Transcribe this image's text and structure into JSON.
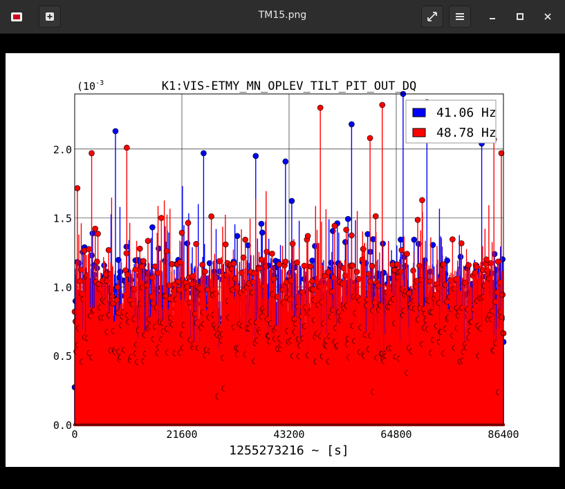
{
  "window": {
    "title": "TM15.png",
    "app_icon": "image-viewer-icon",
    "buttons": {
      "new": "plus-icon",
      "fullscreen": "fullscreen-icon",
      "menu": "hamburger-icon",
      "minimize": "minimize-icon",
      "maximize": "maximize-icon",
      "close": "close-icon"
    }
  },
  "chart_data": {
    "type": "scatter",
    "style": "stem",
    "title": "K1:VIS-ETMY_MN_OPLEV_TILT_PIT_OUT_DQ",
    "xlabel": "1255273216 ~ [s]",
    "ylabel": "",
    "y_scale_label": "(10",
    "y_scale_exponent": "-3",
    "xlim": [
      0,
      86400
    ],
    "ylim": [
      0,
      2.4
    ],
    "x_ticks": [
      0,
      21600,
      43200,
      64800,
      86400
    ],
    "x_tick_labels": [
      "0",
      "21600",
      "43200",
      "64800",
      "86400"
    ],
    "y_ticks": [
      0,
      0.5,
      1.0,
      1.5,
      2.0
    ],
    "y_tick_labels": [
      "0.0",
      "0.5",
      "1.0",
      "1.5",
      "2.0"
    ],
    "grid": true,
    "legend_position": "top-right",
    "series": [
      {
        "name": "41.06 Hz",
        "color": "#0000ff",
        "sample_interval_s": 60,
        "values_note": "dense stems, mostly between 0.5 and 1.6, peaks up to ~2.4",
        "peaks": [
          {
            "x": 8200,
            "y": 2.13
          },
          {
            "x": 26000,
            "y": 1.97
          },
          {
            "x": 36500,
            "y": 1.95
          },
          {
            "x": 42500,
            "y": 1.91
          },
          {
            "x": 55800,
            "y": 2.18
          },
          {
            "x": 66200,
            "y": 2.4
          },
          {
            "x": 71000,
            "y": 2.34
          },
          {
            "x": 82000,
            "y": 2.04
          }
        ]
      },
      {
        "name": "48.78 Hz",
        "color": "#ff0000",
        "sample_interval_s": 60,
        "values_note": "dense stems, mostly between 0.5 and 1.6, peaks up to ~2.3",
        "peaks": [
          {
            "x": 3400,
            "y": 1.97
          },
          {
            "x": 10500,
            "y": 2.01
          },
          {
            "x": 49500,
            "y": 2.3
          },
          {
            "x": 59500,
            "y": 2.08
          },
          {
            "x": 62000,
            "y": 2.32
          },
          {
            "x": 84500,
            "y": 2.07
          },
          {
            "x": 86000,
            "y": 1.97
          }
        ]
      }
    ]
  }
}
